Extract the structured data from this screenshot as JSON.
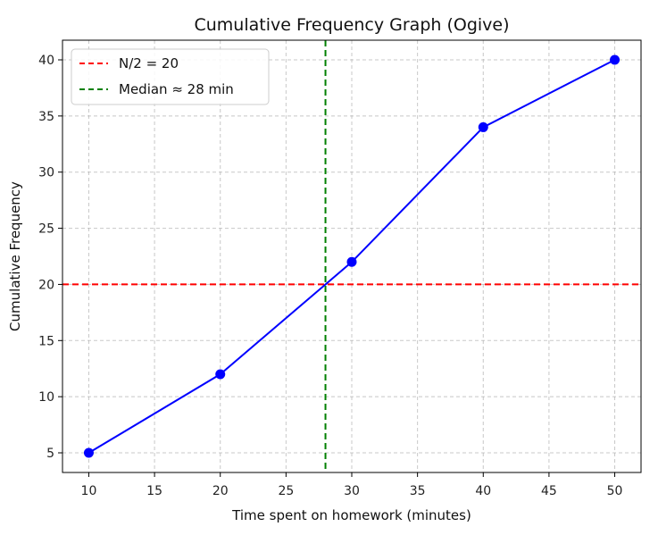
{
  "chart_data": {
    "type": "line",
    "title": "Cumulative Frequency Graph (Ogive)",
    "xlabel": "Time spent on homework (minutes)",
    "ylabel": "Cumulative Frequency",
    "xlim": [
      8,
      52
    ],
    "ylim": [
      3.25,
      41.75
    ],
    "x_ticks": [
      10,
      15,
      20,
      25,
      30,
      35,
      40,
      45,
      50
    ],
    "y_ticks": [
      5,
      10,
      15,
      20,
      25,
      30,
      35,
      40
    ],
    "grid": true,
    "legend_position": "top-left",
    "series": [
      {
        "x": [
          10,
          20,
          30,
          40,
          50
        ],
        "values": [
          5,
          12,
          22,
          34,
          40
        ],
        "color": "#0000ff",
        "marker": "circle"
      }
    ],
    "reference_lines": [
      {
        "orientation": "horizontal",
        "value": 20,
        "label": "N/2 = 20",
        "color": "#ff0000",
        "style": "dashed"
      },
      {
        "orientation": "vertical",
        "value": 28,
        "label": "Median ≈ 28 min",
        "color": "#008000",
        "style": "dashed"
      }
    ]
  }
}
